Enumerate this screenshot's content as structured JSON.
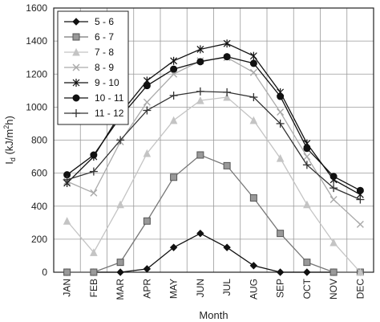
{
  "chart_data": {
    "type": "line",
    "categories": [
      "JAN",
      "FEB",
      "MAR",
      "APR",
      "MAY",
      "JUN",
      "JUL",
      "AUG",
      "SEP",
      "OCT",
      "NOV",
      "DEC"
    ],
    "xlabel": "Month",
    "ylabel": "I_d (kJ/m²h)",
    "ylabel_main": "I",
    "ylabel_sub": "d",
    "ylabel_rest": " (kJ/m",
    "ylabel_sup": "2",
    "ylabel_end": "h)",
    "ylim": [
      0,
      1600
    ],
    "yticks": [
      0,
      200,
      400,
      600,
      800,
      1000,
      1200,
      1400,
      1600
    ],
    "grid": true,
    "legend_position": "top-left",
    "series": [
      {
        "name": "5 - 6",
        "color": "#111111",
        "marker": "diamond",
        "values": [
          0,
          0,
          0,
          20,
          150,
          235,
          150,
          40,
          0,
          0,
          0,
          0
        ]
      },
      {
        "name": "6 - 7",
        "color": "#777777",
        "marker": "square",
        "values": [
          0,
          0,
          60,
          310,
          575,
          710,
          645,
          450,
          235,
          60,
          0,
          0
        ]
      },
      {
        "name": "7 - 8",
        "color": "#c4c4c4",
        "marker": "triangle",
        "values": [
          310,
          120,
          410,
          720,
          920,
          1040,
          1060,
          920,
          690,
          410,
          180,
          0
        ]
      },
      {
        "name": "8 - 9",
        "color": "#aaaaaa",
        "marker": "x",
        "values": [
          550,
          480,
          790,
          1030,
          1200,
          1280,
          1300,
          1210,
          970,
          700,
          440,
          290
        ]
      },
      {
        "name": "9 - 10",
        "color": "#111111",
        "marker": "star",
        "values": [
          540,
          700,
          960,
          1160,
          1280,
          1350,
          1385,
          1310,
          1090,
          780,
          560,
          470
        ]
      },
      {
        "name": "10 - 11",
        "color": "#111111",
        "marker": "circle",
        "values": [
          590,
          710,
          940,
          1130,
          1230,
          1275,
          1305,
          1265,
          1065,
          750,
          580,
          495
        ]
      },
      {
        "name": "11 - 12",
        "color": "#333333",
        "marker": "plus",
        "values": [
          560,
          610,
          800,
          980,
          1070,
          1095,
          1090,
          1060,
          900,
          650,
          510,
          440
        ]
      }
    ]
  }
}
